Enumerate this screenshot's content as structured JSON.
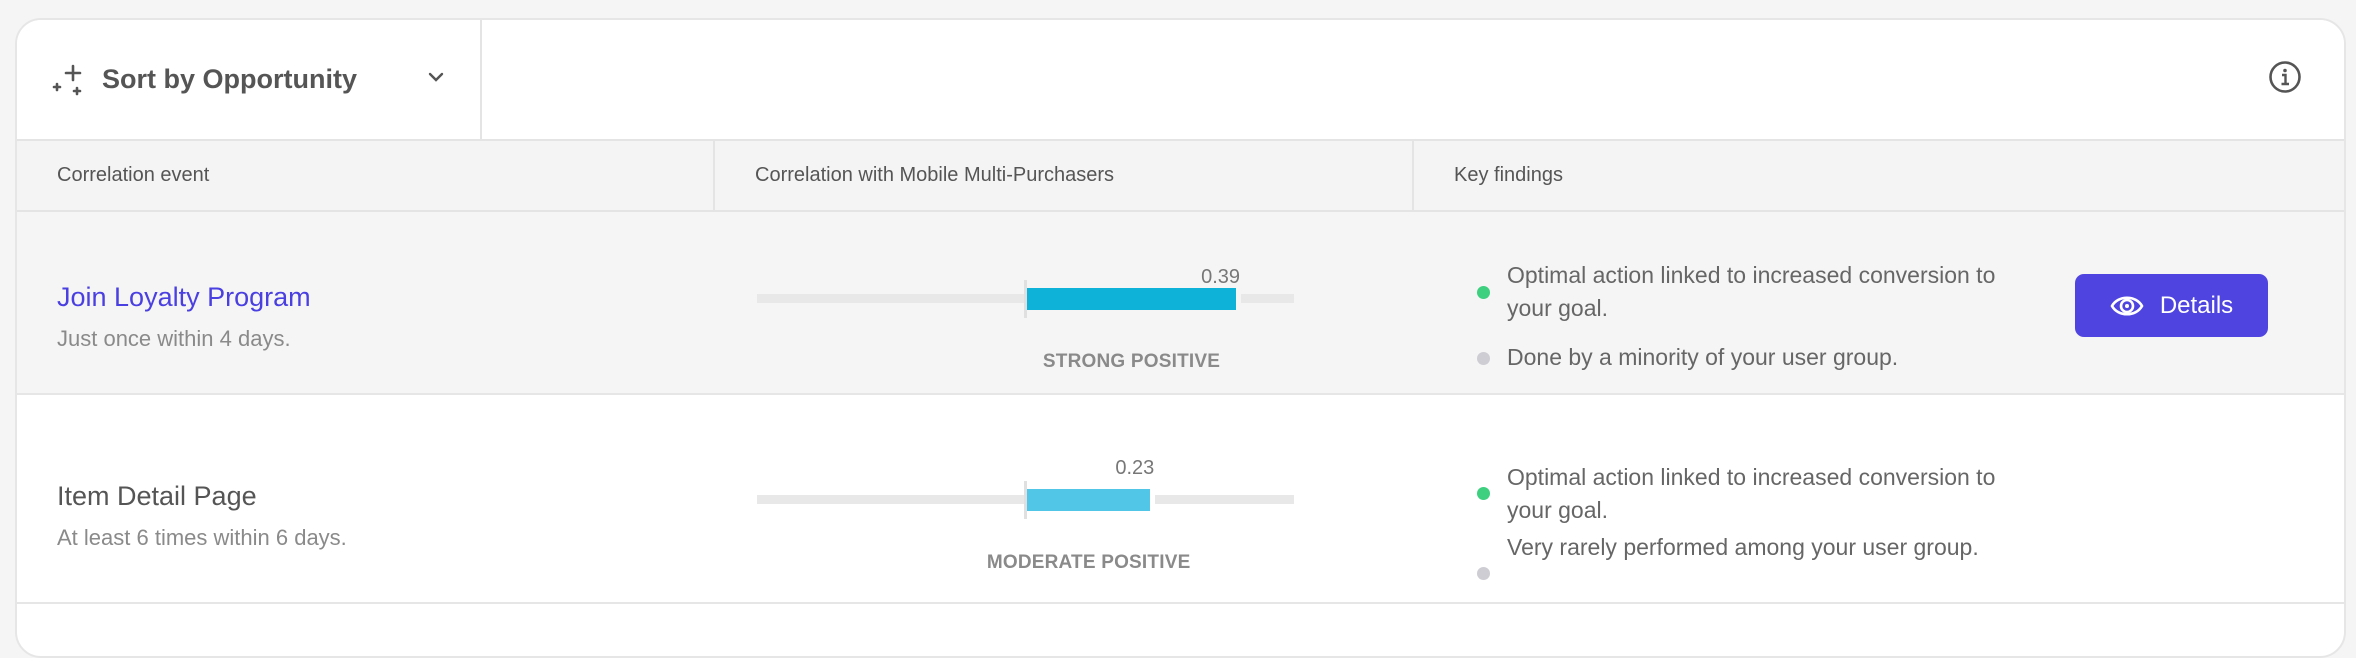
{
  "toolbar": {
    "sort_label": "Sort by Opportunity",
    "sort_icon": "sparkle-icon",
    "info_icon": "info-icon"
  },
  "table": {
    "headers": [
      "Correlation event",
      "Correlation with Mobile Multi-Purchasers",
      "Key findings"
    ],
    "scale": {
      "min": -0.5,
      "max": 0.5
    },
    "colors": {
      "strong": "#0eb1d8",
      "moderate": "#52c6e6",
      "positive_dot": "#3ecf7f",
      "neutral_dot": "#cdcdd3",
      "accent": "#4f44e0",
      "link": "#4a3fe0"
    },
    "rows": [
      {
        "title": "Join Loyalty Program",
        "subtitle": "Just once within 4 days.",
        "value": 0.39,
        "value_label": "0.39",
        "strength": "STRONG POSITIVE",
        "findings": [
          {
            "text": "Optimal action linked to increased conversion to your goal.",
            "status": "positive"
          },
          {
            "text": "Done by a minority of your user group.",
            "status": "neutral"
          }
        ],
        "action": "Details"
      },
      {
        "title": "Item Detail Page",
        "subtitle": "At least 6 times within 6 days.",
        "value": 0.23,
        "value_label": "0.23",
        "strength": "MODERATE POSITIVE",
        "findings": [
          {
            "text": "Optimal action linked to increased conversion to your goal.",
            "status": "positive"
          },
          {
            "text": "Very rarely performed among your user group.",
            "status": "neutral"
          }
        ]
      }
    ]
  }
}
